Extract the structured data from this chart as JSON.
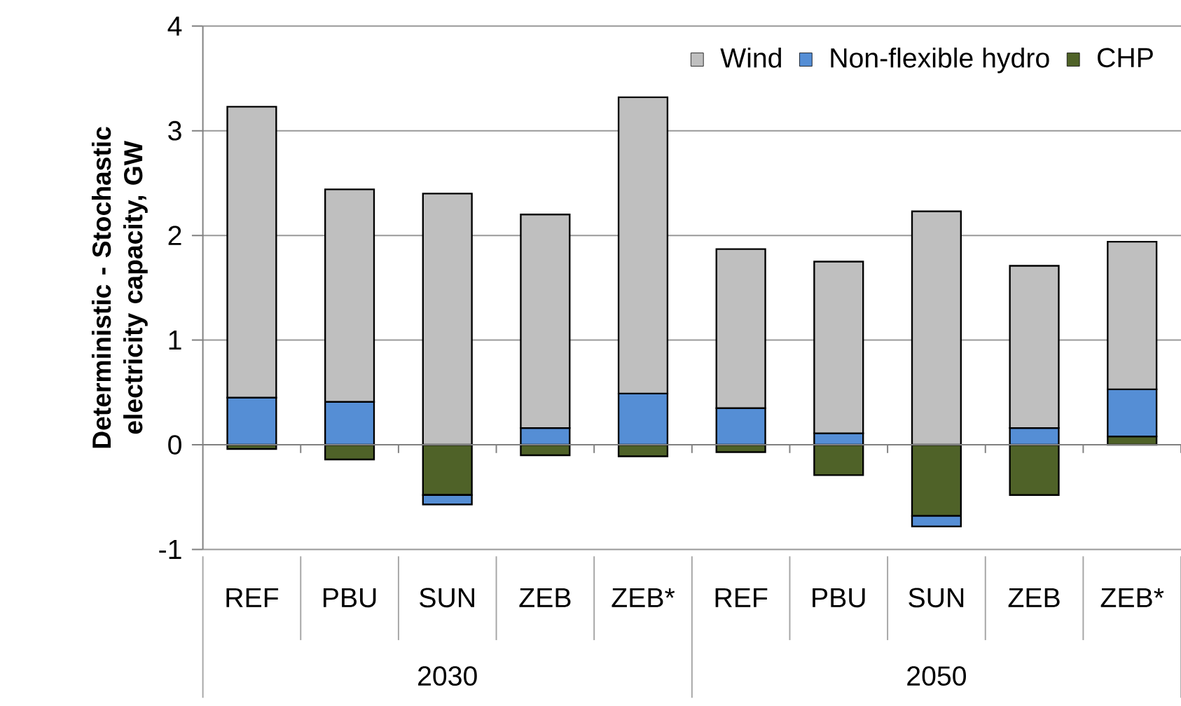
{
  "chart_data": {
    "type": "bar",
    "stacked": true,
    "ylabel": "Deterministic - Stochastic electricity capacity, GW",
    "categories": [
      "REF",
      "PBU",
      "SUN",
      "ZEB",
      "ZEB*",
      "REF",
      "PBU",
      "SUN",
      "ZEB",
      "ZEB*"
    ],
    "annotations": [
      "2030",
      "2050"
    ],
    "series": [
      {
        "name": "CHP",
        "color": "#4f6228",
        "values": [
          -0.04,
          -0.14,
          -0.48,
          -0.1,
          -0.11,
          -0.07,
          -0.29,
          -0.68,
          -0.48,
          0.08
        ]
      },
      {
        "name": "Non-flexible hydro",
        "color": "#558ed5",
        "values": [
          0.45,
          0.41,
          -0.09,
          0.16,
          0.49,
          0.35,
          0.11,
          -0.1,
          0.16,
          0.45
        ]
      },
      {
        "name": "Wind",
        "color": "#bfbfbf",
        "values": [
          2.78,
          2.03,
          2.4,
          2.04,
          2.83,
          1.52,
          1.64,
          2.23,
          1.55,
          1.41
        ]
      }
    ],
    "ylim": [
      -1,
      4
    ],
    "yticks": [
      -1,
      0,
      1,
      2,
      3,
      4
    ],
    "grid": "y",
    "legend": "top right"
  }
}
